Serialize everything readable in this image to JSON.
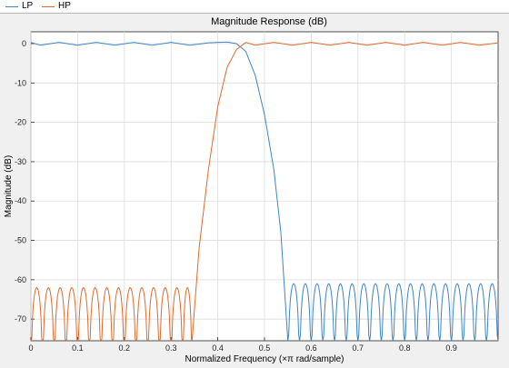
{
  "colors": {
    "lp": "#3d85c6",
    "hp": "#e06a2b",
    "grid": "#dcdcdc",
    "plot_bg": "#ffffff"
  },
  "chart_data": {
    "type": "line",
    "title": "Magnitude Response (dB)",
    "xlabel": "Normalized Frequency (×π rad/sample)",
    "ylabel": "Magnitude (dB)",
    "xlim": [
      0,
      1
    ],
    "ylim": [
      -75.5,
      3
    ],
    "xticks": [
      0,
      0.1,
      0.2,
      0.3,
      0.4,
      0.5,
      0.6,
      0.7,
      0.8,
      0.9
    ],
    "xtick_labels": [
      "0",
      "0.1",
      "0.2",
      "0.3",
      "0.4",
      "0.5",
      "0.6",
      "0.7",
      "0.8",
      "0.9"
    ],
    "yticks": [
      0,
      -10,
      -20,
      -30,
      -40,
      -50,
      -60,
      -70
    ],
    "ytick_labels": [
      "0",
      "-10",
      "-20",
      "-30",
      "-40",
      "-50",
      "-60",
      "-70"
    ],
    "grid": true,
    "legend": "top-left",
    "series": [
      {
        "name": "LP",
        "points": [
          [
            0,
            0.3
          ],
          [
            0.02,
            -0.4
          ],
          [
            0.06,
            0.3
          ],
          [
            0.1,
            -0.4
          ],
          [
            0.14,
            0.3
          ],
          [
            0.18,
            -0.4
          ],
          [
            0.22,
            0.3
          ],
          [
            0.26,
            -0.4
          ],
          [
            0.3,
            0.3
          ],
          [
            0.34,
            -0.4
          ],
          [
            0.38,
            0.2
          ],
          [
            0.42,
            0.4
          ],
          [
            0.44,
            0.0
          ],
          [
            0.46,
            -2
          ],
          [
            0.48,
            -8
          ],
          [
            0.5,
            -18
          ],
          [
            0.52,
            -32
          ],
          [
            0.535,
            -48
          ],
          [
            0.55,
            -75.5
          ]
        ],
        "stopband_ripple": {
          "x_start": 0.55,
          "x_end": 1.0,
          "peak_db": -61,
          "null_db": -75.5,
          "lobe_width": 0.025
        }
      },
      {
        "name": "HP",
        "stopband_ripple": {
          "x_start": 0.0,
          "x_end": 0.345,
          "peak_db": -62,
          "null_db": -75.5,
          "lobe_width": 0.025
        },
        "points": [
          [
            0.345,
            -75.5
          ],
          [
            0.36,
            -52
          ],
          [
            0.38,
            -32
          ],
          [
            0.4,
            -16
          ],
          [
            0.42,
            -6
          ],
          [
            0.44,
            -1.5
          ],
          [
            0.46,
            0.3
          ],
          [
            0.48,
            -0.4
          ],
          [
            0.52,
            0.3
          ],
          [
            0.56,
            -0.4
          ],
          [
            0.6,
            0.3
          ],
          [
            0.64,
            -0.4
          ],
          [
            0.68,
            0.3
          ],
          [
            0.72,
            -0.4
          ],
          [
            0.76,
            0.3
          ],
          [
            0.8,
            -0.4
          ],
          [
            0.84,
            0.3
          ],
          [
            0.88,
            -0.4
          ],
          [
            0.92,
            0.3
          ],
          [
            0.96,
            -0.4
          ],
          [
            1.0,
            0.2
          ]
        ]
      }
    ]
  }
}
